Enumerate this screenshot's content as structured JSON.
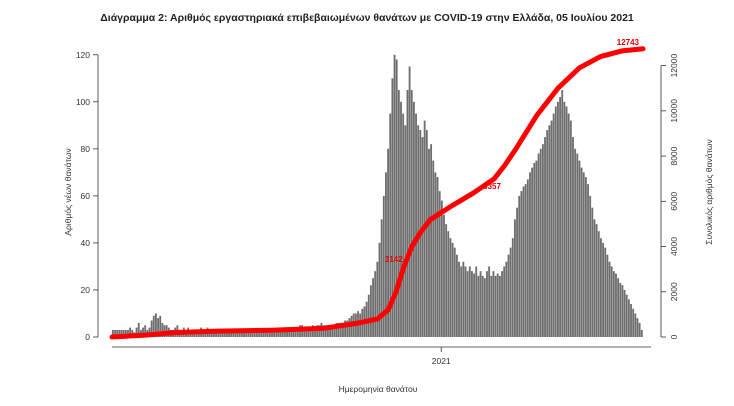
{
  "chart_data": {
    "type": "bar",
    "title": "Διάγραμμα 2: Αριθμός εργαστηριακά επιβεβαιωμένων θανάτων με COVID-19 στην Ελλάδα, 05 Ιουλίου 2021",
    "xlabel": "Ημερομηνία θανάτου",
    "ylabel": "Αριθμός νέων θανάτων",
    "y2label": "Συνολικός αριθμός θανάτων",
    "x_tick_labels": [
      "2021"
    ],
    "ylim": [
      0,
      125
    ],
    "yticks": [
      0,
      20,
      40,
      60,
      80,
      100,
      120
    ],
    "y2lim": [
      0,
      13000
    ],
    "y2ticks": [
      0,
      2000,
      4000,
      6000,
      8000,
      10000,
      12000
    ],
    "bar_color": "#6e6e6e",
    "line_color": "#ff0000",
    "series": [
      {
        "name": "Αριθμός νέων θανάτων",
        "type": "bar",
        "values": [
          3,
          3,
          3,
          3,
          3,
          3,
          3,
          3,
          4,
          3,
          2,
          4,
          6,
          3,
          4,
          5,
          3,
          4,
          7,
          9,
          10,
          8,
          9,
          6,
          5,
          5,
          4,
          3,
          3,
          4,
          5,
          3,
          2,
          4,
          3,
          4,
          3,
          3,
          3,
          3,
          3,
          4,
          3,
          3,
          4,
          3,
          3,
          3,
          3,
          3,
          3,
          3,
          3,
          3,
          3,
          3,
          3,
          3,
          3,
          3,
          3,
          3,
          3,
          3,
          3,
          3,
          3,
          3,
          3,
          3,
          3,
          3,
          3,
          3,
          3,
          3,
          3,
          3,
          3,
          3,
          3,
          3,
          3,
          3,
          3,
          3,
          4,
          5,
          5,
          4,
          4,
          4,
          3,
          5,
          4,
          5,
          5,
          6,
          5,
          5,
          5,
          5,
          5,
          5,
          6,
          6,
          6,
          6,
          7,
          7,
          8,
          9,
          10,
          10,
          11,
          10,
          12,
          13,
          15,
          18,
          22,
          25,
          28,
          32,
          40,
          50,
          60,
          70,
          80,
          95,
          110,
          120,
          118,
          105,
          100,
          95,
          90,
          105,
          115,
          105,
          100,
          95,
          90,
          88,
          85,
          92,
          88,
          80,
          82,
          75,
          70,
          68,
          62,
          58,
          52,
          48,
          45,
          42,
          40,
          38,
          35,
          32,
          30,
          32,
          30,
          28,
          30,
          28,
          27,
          30,
          26,
          28,
          26,
          25,
          28,
          30,
          26,
          28,
          26,
          27,
          26,
          28,
          30,
          32,
          35,
          38,
          42,
          50,
          55,
          60,
          62,
          64,
          65,
          67,
          70,
          72,
          74,
          75,
          78,
          80,
          82,
          85,
          88,
          90,
          92,
          95,
          98,
          100,
          102,
          105,
          100,
          98,
          95,
          92,
          85,
          80,
          78,
          75,
          72,
          70,
          68,
          65,
          60,
          55,
          50,
          48,
          45,
          42,
          40,
          38,
          35,
          32,
          30,
          28,
          27,
          25,
          23,
          22,
          20,
          18,
          16,
          14,
          12,
          10,
          8,
          6,
          3
        ]
      },
      {
        "name": "Συνολικός αριθμός θανάτων",
        "type": "line",
        "axis": "right",
        "x": [
          0,
          0.06,
          0.12,
          0.2,
          0.3,
          0.4,
          0.46,
          0.5,
          0.52,
          0.535,
          0.55,
          0.565,
          0.58,
          0.6,
          0.64,
          0.68,
          0.72,
          0.74,
          0.76,
          0.8,
          0.84,
          0.88,
          0.92,
          0.96,
          1.0
        ],
        "values": [
          0,
          80,
          200,
          260,
          300,
          390,
          600,
          800,
          1200,
          2000,
          3142,
          4000,
          4600,
          5200,
          5800,
          6357,
          7000,
          7600,
          8300,
          9800,
          11000,
          11900,
          12400,
          12650,
          12743
        ]
      }
    ],
    "annotations": [
      {
        "text": "3142",
        "value": 3142,
        "at": 0.555
      },
      {
        "text": "6357",
        "value": 6357,
        "at": 0.74
      },
      {
        "text": "12743",
        "value": 12743,
        "at": 1.0
      }
    ]
  }
}
